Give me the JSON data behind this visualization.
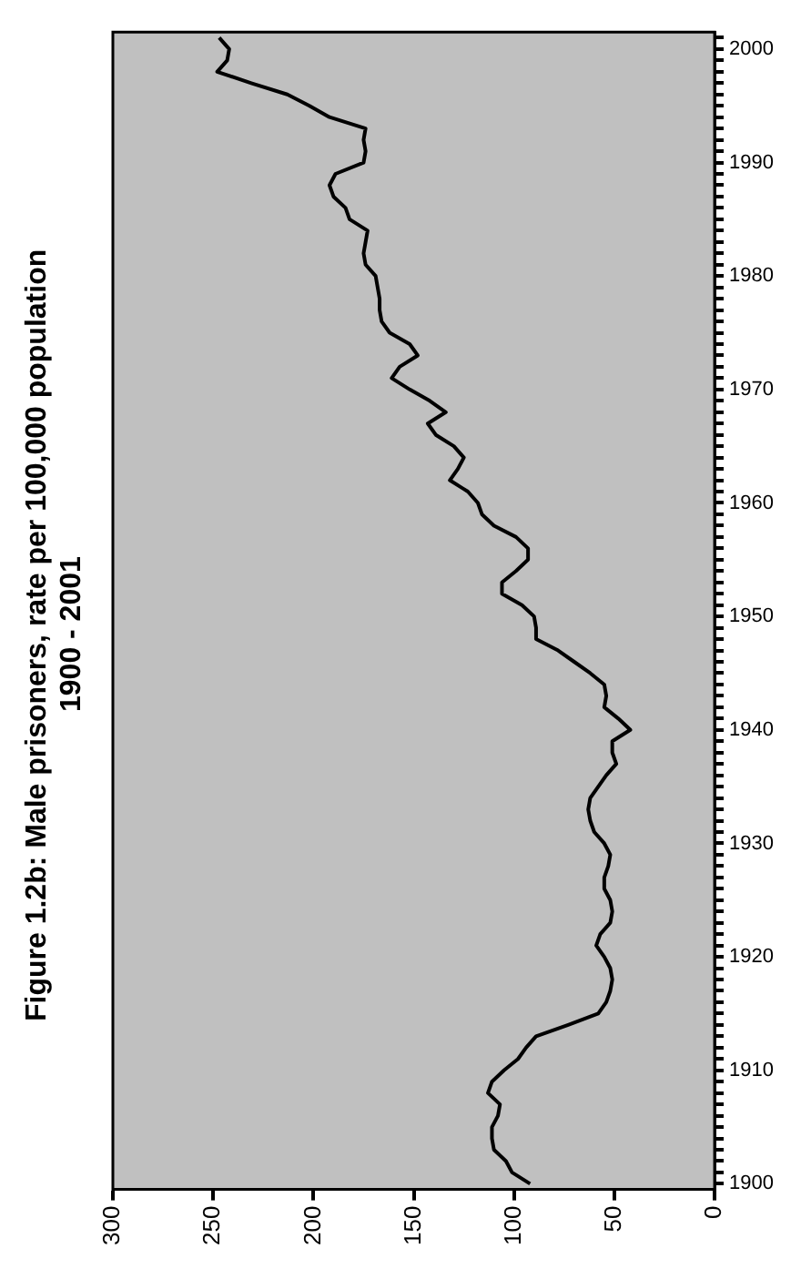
{
  "chart_data": {
    "type": "line",
    "title": "Figure 1.2b: Male prisoners, rate per 100,000 population",
    "subtitle": "1900 - 2001",
    "series": [
      {
        "color": "#000000",
        "x": [
          92,
          101,
          104,
          110,
          111,
          111,
          108,
          107,
          113,
          111,
          105,
          98,
          94,
          89,
          73,
          58,
          54,
          52,
          51,
          52,
          55,
          59,
          57,
          52,
          51,
          52,
          55,
          55,
          53,
          52,
          55,
          60,
          62,
          63,
          62,
          58,
          54,
          49,
          51,
          51,
          42,
          48,
          55,
          54,
          55,
          62,
          70,
          78,
          89,
          89,
          90,
          96,
          106,
          106,
          99,
          93,
          93,
          99,
          110,
          116,
          118,
          123,
          132,
          128,
          125,
          130,
          139,
          143,
          134,
          142,
          152,
          161,
          157,
          148,
          152,
          162,
          166,
          167,
          167,
          168,
          169,
          174,
          175,
          174,
          173,
          182,
          184,
          190,
          192,
          189,
          175,
          174,
          175,
          174,
          192,
          202,
          213,
          231,
          248,
          243,
          242,
          247
        ],
        "values": [
          1900,
          1901,
          1902,
          1903,
          1904,
          1905,
          1906,
          1907,
          1908,
          1909,
          1910,
          1911,
          1912,
          1913,
          1914,
          1915,
          1916,
          1917,
          1918,
          1919,
          1920,
          1921,
          1922,
          1923,
          1924,
          1925,
          1926,
          1927,
          1928,
          1929,
          1930,
          1931,
          1932,
          1933,
          1934,
          1935,
          1936,
          1937,
          1938,
          1939,
          1940,
          1941,
          1942,
          1943,
          1944,
          1945,
          1946,
          1947,
          1948,
          1949,
          1950,
          1951,
          1952,
          1953,
          1954,
          1955,
          1956,
          1957,
          1958,
          1959,
          1960,
          1961,
          1962,
          1963,
          1964,
          1965,
          1966,
          1967,
          1968,
          1969,
          1970,
          1971,
          1972,
          1973,
          1974,
          1975,
          1976,
          1977,
          1978,
          1979,
          1980,
          1981,
          1982,
          1983,
          1984,
          1985,
          1986,
          1987,
          1988,
          1989,
          1990,
          1991,
          1992,
          1993,
          1994,
          1995,
          1996,
          1997,
          1998,
          1999,
          2000,
          2001
        ]
      }
    ],
    "xlim": [
      300,
      0
    ],
    "xticks": [
      0,
      50,
      100,
      150,
      200,
      250,
      300
    ],
    "ylim": [
      1899.5,
      2001.5
    ],
    "yticks": [
      1900,
      {
        "value": 1901,
        "label": null
      },
      {
        "value": 1902,
        "label": null
      },
      {
        "value": 1903,
        "label": null
      },
      {
        "value": 1904,
        "label": null
      },
      {
        "value": 1905,
        "label": null
      },
      {
        "value": 1906,
        "label": null
      },
      {
        "value": 1907,
        "label": null
      },
      {
        "value": 1908,
        "label": null
      },
      {
        "value": 1909,
        "label": null
      },
      1910,
      {
        "value": 1911,
        "label": null
      },
      {
        "value": 1912,
        "label": null
      },
      {
        "value": 1913,
        "label": null
      },
      {
        "value": 1914,
        "label": null
      },
      {
        "value": 1915,
        "label": null
      },
      {
        "value": 1916,
        "label": null
      },
      {
        "value": 1917,
        "label": null
      },
      {
        "value": 1918,
        "label": null
      },
      {
        "value": 1919,
        "label": null
      },
      1920,
      {
        "value": 1921,
        "label": null
      },
      {
        "value": 1922,
        "label": null
      },
      {
        "value": 1923,
        "label": null
      },
      {
        "value": 1924,
        "label": null
      },
      {
        "value": 1925,
        "label": null
      },
      {
        "value": 1926,
        "label": null
      },
      {
        "value": 1927,
        "label": null
      },
      {
        "value": 1928,
        "label": null
      },
      {
        "value": 1929,
        "label": null
      },
      1930,
      {
        "value": 1931,
        "label": null
      },
      {
        "value": 1932,
        "label": null
      },
      {
        "value": 1933,
        "label": null
      },
      {
        "value": 1934,
        "label": null
      },
      {
        "value": 1935,
        "label": null
      },
      {
        "value": 1936,
        "label": null
      },
      {
        "value": 1937,
        "label": null
      },
      {
        "value": 1938,
        "label": null
      },
      {
        "value": 1939,
        "label": null
      },
      1940,
      {
        "value": 1941,
        "label": null
      },
      {
        "value": 1942,
        "label": null
      },
      {
        "value": 1943,
        "label": null
      },
      {
        "value": 1944,
        "label": null
      },
      {
        "value": 1945,
        "label": null
      },
      {
        "value": 1946,
        "label": null
      },
      {
        "value": 1947,
        "label": null
      },
      {
        "value": 1948,
        "label": null
      },
      {
        "value": 1949,
        "label": null
      },
      1950,
      {
        "value": 1951,
        "label": null
      },
      {
        "value": 1952,
        "label": null
      },
      {
        "value": 1953,
        "label": null
      },
      {
        "value": 1954,
        "label": null
      },
      {
        "value": 1955,
        "label": null
      },
      {
        "value": 1956,
        "label": null
      },
      {
        "value": 1957,
        "label": null
      },
      {
        "value": 1958,
        "label": null
      },
      {
        "value": 1959,
        "label": null
      },
      1960,
      {
        "value": 1961,
        "label": null
      },
      {
        "value": 1962,
        "label": null
      },
      {
        "value": 1963,
        "label": null
      },
      {
        "value": 1964,
        "label": null
      },
      {
        "value": 1965,
        "label": null
      },
      {
        "value": 1966,
        "label": null
      },
      {
        "value": 1967,
        "label": null
      },
      {
        "value": 1968,
        "label": null
      },
      {
        "value": 1969,
        "label": null
      },
      1970,
      {
        "value": 1971,
        "label": null
      },
      {
        "value": 1972,
        "label": null
      },
      {
        "value": 1973,
        "label": null
      },
      {
        "value": 1974,
        "label": null
      },
      {
        "value": 1975,
        "label": null
      },
      {
        "value": 1976,
        "label": null
      },
      {
        "value": 1977,
        "label": null
      },
      {
        "value": 1978,
        "label": null
      },
      {
        "value": 1979,
        "label": null
      },
      1980,
      {
        "value": 1981,
        "label": null
      },
      {
        "value": 1982,
        "label": null
      },
      {
        "value": 1983,
        "label": null
      },
      {
        "value": 1984,
        "label": null
      },
      {
        "value": 1985,
        "label": null
      },
      {
        "value": 1986,
        "label": null
      },
      {
        "value": 1987,
        "label": null
      },
      {
        "value": 1988,
        "label": null
      },
      {
        "value": 1989,
        "label": null
      },
      1990,
      {
        "value": 1991,
        "label": null
      },
      {
        "value": 1992,
        "label": null
      },
      {
        "value": 1993,
        "label": null
      },
      {
        "value": 1994,
        "label": null
      },
      {
        "value": 1995,
        "label": null
      },
      {
        "value": 1996,
        "label": null
      },
      {
        "value": 1997,
        "label": null
      },
      {
        "value": 1998,
        "label": null
      },
      {
        "value": 1999,
        "label": null
      },
      2000,
      {
        "value": 2001,
        "label": null
      }
    ],
    "grid": false,
    "legend": false,
    "marker": "none",
    "line_style": "solid"
  }
}
